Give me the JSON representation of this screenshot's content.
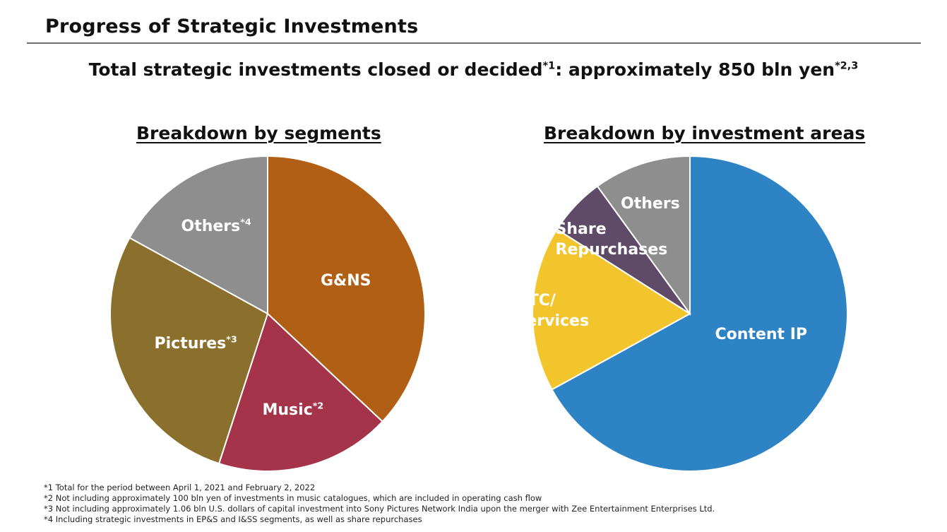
{
  "page": {
    "title": "Progress of Strategic Investments",
    "subtitle_text": "Total strategic investments closed or decided",
    "subtitle_sup1": "*1",
    "subtitle_text2": ": approximately 850 bln yen",
    "subtitle_sup2": "*2,3"
  },
  "chart_data": [
    {
      "type": "pie",
      "title": "Breakdown by segments",
      "start_angle_deg": 0,
      "direction": "clockwise",
      "slices": [
        {
          "label": "G&NS",
          "sup": "",
          "value": 37,
          "color": "#b05f14"
        },
        {
          "label": "Music",
          "sup": "*2",
          "value": 18,
          "color": "#a5334a"
        },
        {
          "label": "Pictures",
          "sup": "*3",
          "value": 28,
          "color": "#8b6f2d"
        },
        {
          "label": "Others",
          "sup": "*4",
          "value": 17,
          "color": "#8e8e8e"
        }
      ]
    },
    {
      "type": "pie",
      "title": "Breakdown by investment areas",
      "start_angle_deg": 0,
      "direction": "clockwise",
      "slices": [
        {
          "label": "Content IP",
          "sup": "",
          "value": 67,
          "color": "#2e83c4"
        },
        {
          "label": "DTC/\nServices",
          "sup": "",
          "value": 17,
          "color": "#f2c52c"
        },
        {
          "label": "Share\nRepurchases",
          "sup": "",
          "value": 6,
          "color": "#5f4a68"
        },
        {
          "label": "Others",
          "sup": "",
          "value": 10,
          "color": "#8e8e8e"
        }
      ]
    }
  ],
  "footnotes": [
    "*1 Total for the period between April 1, 2021 and February 2, 2022",
    "*2 Not including approximately 100 bln yen of investments in music catalogues, which are included in operating cash flow",
    "*3 Not including approximately 1.06 bln U.S. dollars of capital investment into Sony Pictures Network India upon the merger with Zee Entertainment Enterprises Ltd.",
    "*4 Including strategic investments in EP&S and I&SS segments, as well as share repurchases"
  ]
}
